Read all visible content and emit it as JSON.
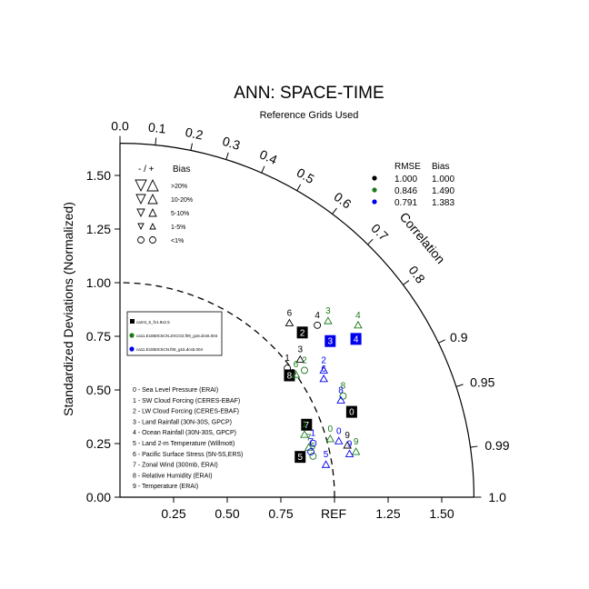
{
  "colors": {
    "case1": "#000000",
    "case2": "#1a7a1a",
    "case3": "#0000ee"
  },
  "chart_data": {
    "type": "scatter",
    "subtype": "taylor-diagram",
    "title": "ANN: SPACE-TIME",
    "subtitle": "Reference Grids Used",
    "ylabel": "Standardized Deviations (Normalized)",
    "correlation_label": "Correlation",
    "ref_label": "REF",
    "y_ticks": [
      "0.00",
      "0.25",
      "0.50",
      "0.75",
      "1.00",
      "1.25",
      "1.50"
    ],
    "x_ticks": [
      "0.25",
      "0.50",
      "0.75",
      "1.25",
      "1.50"
    ],
    "corr_ticks": [
      "0.0",
      "0.1",
      "0.2",
      "0.3",
      "0.4",
      "0.5",
      "0.6",
      "0.7",
      "0.8",
      "0.9",
      "0.95",
      "0.99",
      "1.0"
    ],
    "corr_values": [
      0.0,
      0.1,
      0.2,
      0.3,
      0.4,
      0.5,
      0.6,
      0.7,
      0.8,
      0.9,
      0.95,
      0.99,
      1.0
    ],
    "xlim": [
      0,
      1.65
    ],
    "ylim": [
      0,
      1.65
    ],
    "bias_legend": {
      "header_sign": "- / +",
      "header_bias": "Bias",
      "rows": [
        ">20%",
        "10-20%",
        "5-10%",
        "1-5%",
        "<1%"
      ]
    },
    "stats_legend": {
      "header_rmse": "RMSE",
      "header_bias": "Bias",
      "rows": [
        {
          "rmse": "1.000",
          "bias": "1.000"
        },
        {
          "rmse": "0.846",
          "bias": "1.490"
        },
        {
          "rmse": "0.791",
          "bias": "1.383"
        }
      ]
    },
    "case_names": [
      "cam3_5_fv1.9x2.5",
      "ca11.E1850C5CN.ZXCO2.f09_g16.dcs6.004",
      "ca11.E1850C5CN.f09_g16.dcs5.004"
    ],
    "variables": [
      "0 - Sea Level Pressure (ERAI)",
      "1 - SW Cloud Forcing (CERES-EBAF)",
      "2 - LW Cloud Forcing (CERES-EBAF)",
      "3 - Land Rainfall (30N-30S, GPCP)",
      "4 - Ocean Rainfall (30N-30S, GPCP)",
      "5 - Land 2-m Temperature (Willmott)",
      "6 - Pacific Surface Stress (5N-5S,ERS)",
      "7 - Zonal Wind (300mb, ERAI)",
      "8 - Relative Humidity (ERAI)",
      "9 - Temperature (ERAI)"
    ],
    "series": [
      {
        "name": "cam3_5_fv1.9x2.5",
        "labels": [
          "0",
          "2",
          "3",
          "4",
          "5",
          "6",
          "7",
          "8",
          "9",
          "1"
        ],
        "x": [
          1.08,
          0.85,
          0.84,
          0.92,
          0.84,
          0.79,
          0.87,
          0.79,
          1.06,
          0.78
        ],
        "y": [
          0.4,
          0.77,
          0.65,
          0.81,
          0.19,
          0.82,
          0.34,
          0.57,
          0.25,
          0.61
        ]
      },
      {
        "name": "ca11.E1850C5CN.ZXCO2.f09_g16.dcs6.004",
        "labels": [
          "0",
          "1",
          "2",
          "3",
          "4",
          "5",
          "6",
          "7",
          "8",
          "9"
        ],
        "x": [
          0.98,
          0.86,
          0.86,
          0.97,
          1.11,
          0.9,
          0.82,
          0.88,
          1.04,
          1.1
        ],
        "y": [
          0.28,
          0.3,
          0.6,
          0.83,
          0.81,
          0.2,
          0.58,
          0.24,
          0.48,
          0.22
        ]
      },
      {
        "name": "ca11.E1850C5CN.f09_g16.dcs5.004",
        "labels": [
          "0",
          "1",
          "2",
          "3",
          "4",
          "5",
          "6",
          "7",
          "8",
          "9"
        ],
        "x": [
          1.02,
          0.9,
          0.95,
          0.98,
          1.1,
          0.96,
          0.95,
          0.89,
          1.03,
          1.07
        ],
        "y": [
          0.27,
          0.26,
          0.6,
          0.73,
          0.74,
          0.16,
          0.56,
          0.22,
          0.46,
          0.21
        ]
      }
    ]
  }
}
